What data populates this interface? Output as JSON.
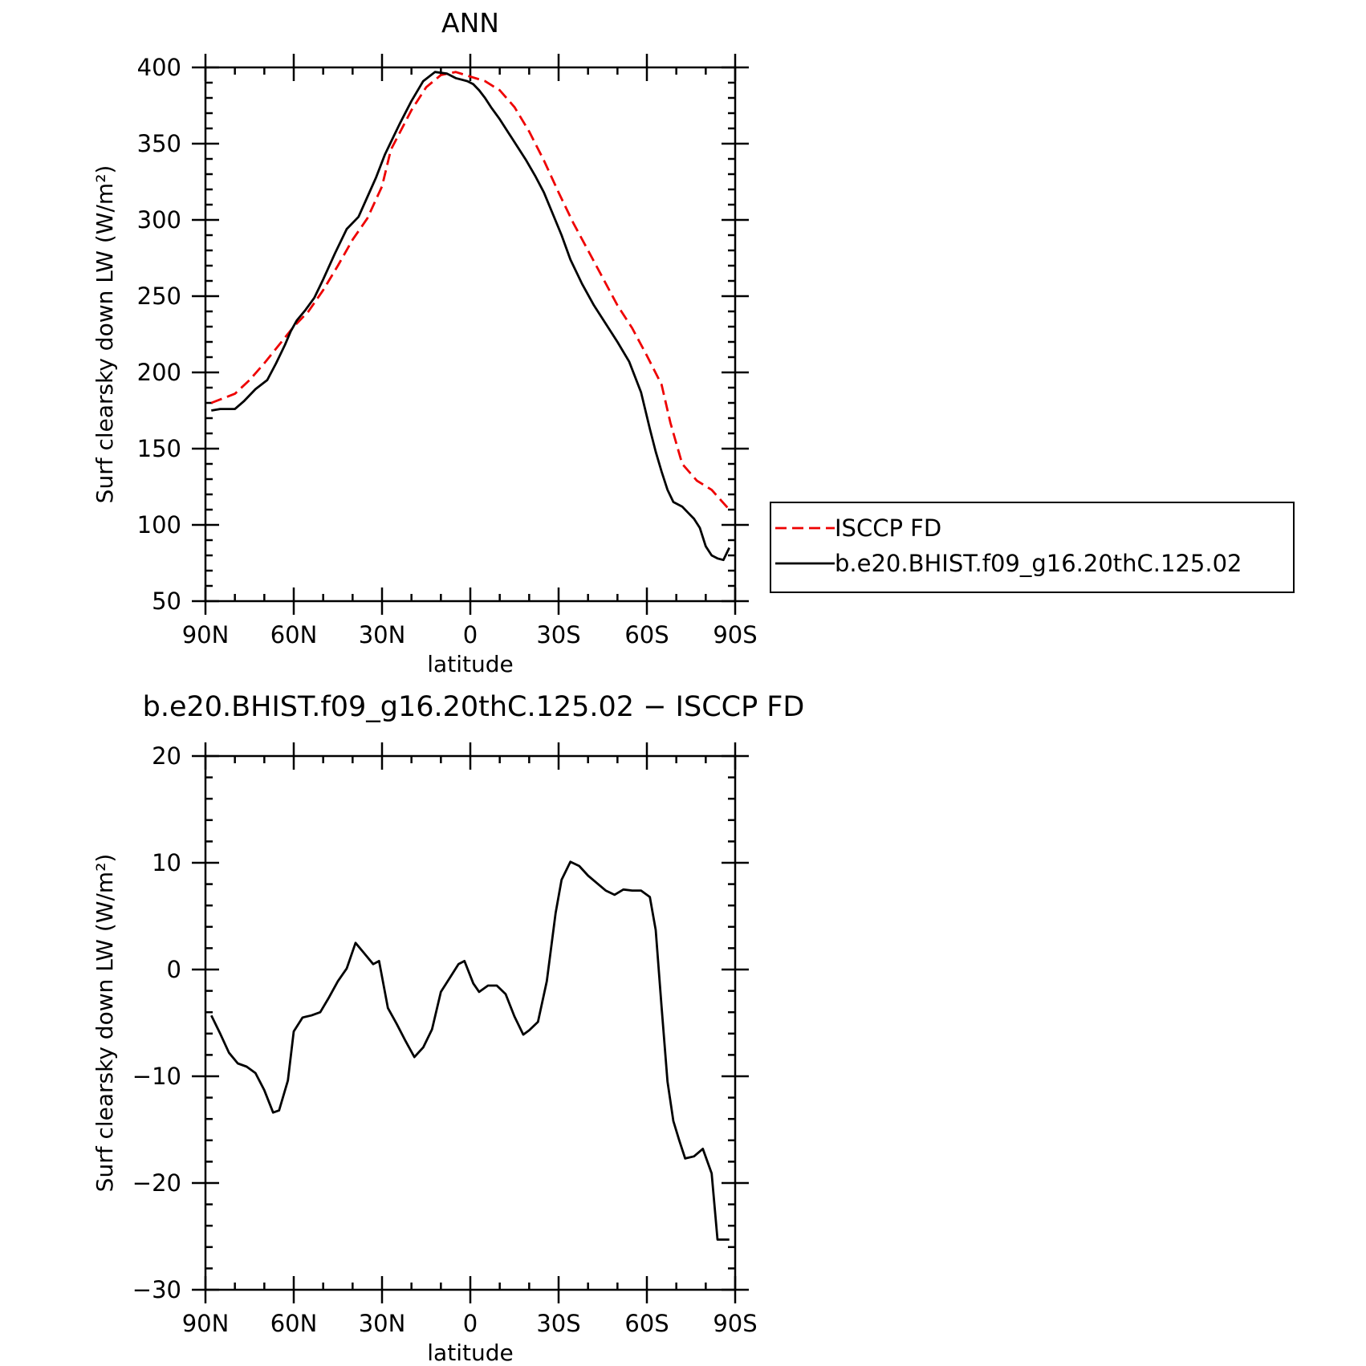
{
  "chart_data": [
    {
      "type": "line",
      "title": "ANN",
      "xlabel": "latitude",
      "ylabel": "Surf clearsky down LW (W/m²)",
      "xlim": [
        90,
        -90
      ],
      "ylim": [
        50,
        400
      ],
      "x_ticks": [
        {
          "value": 90,
          "label": "90N"
        },
        {
          "value": 60,
          "label": "60N"
        },
        {
          "value": 30,
          "label": "30N"
        },
        {
          "value": 0,
          "label": "0"
        },
        {
          "value": -30,
          "label": "30S"
        },
        {
          "value": -60,
          "label": "60S"
        },
        {
          "value": -90,
          "label": "90S"
        }
      ],
      "y_ticks": [
        400,
        350,
        300,
        250,
        200,
        150,
        100,
        50
      ],
      "legend": "right",
      "series": [
        {
          "name": "ISCCP FD",
          "color": "#ee0000",
          "style": "dashed",
          "x": [
            88,
            80,
            75,
            70,
            65,
            60,
            55,
            50,
            45,
            40,
            35,
            30,
            27,
            20,
            15,
            10,
            5,
            0,
            -5,
            -10,
            -15,
            -20,
            -25,
            -30,
            -35,
            -40,
            -45,
            -50,
            -55,
            -60,
            -65,
            -68,
            -72,
            -77,
            -82,
            -88
          ],
          "y": [
            180,
            186,
            195,
            206,
            218,
            230,
            240,
            254,
            270,
            287,
            301,
            322,
            346,
            372,
            387,
            395,
            397,
            394,
            391,
            385,
            374,
            358,
            339,
            318,
            298,
            280,
            262,
            244,
            229,
            211,
            192,
            167,
            140,
            129,
            123,
            110
          ]
        },
        {
          "name": "b.e20.BHIST.f09_g16.20thC.125.02",
          "color": "#000000",
          "style": "solid",
          "x": [
            88,
            85,
            80,
            77,
            73,
            69,
            66,
            63,
            61,
            59,
            56,
            53,
            50,
            46,
            42,
            38,
            35,
            32,
            29,
            27,
            24,
            20,
            16,
            12,
            8,
            5,
            3,
            1,
            -1,
            -3,
            -5,
            -7,
            -10,
            -13,
            -16,
            -19,
            -22,
            -25,
            -28,
            -31,
            -34,
            -38,
            -42,
            -46,
            -50,
            -54,
            -58,
            -61,
            -63,
            -65,
            -67,
            -69,
            -72,
            -74,
            -76,
            -78,
            -80,
            -82,
            -84,
            -86,
            -88
          ],
          "y": [
            175,
            176,
            176,
            181,
            189,
            195,
            206,
            218,
            227,
            234,
            241,
            249,
            261,
            278,
            294,
            302,
            315,
            328,
            343,
            351,
            363,
            378,
            391,
            397,
            396,
            393,
            392,
            391,
            389,
            385,
            380,
            374,
            366,
            357,
            348,
            339,
            329,
            318,
            304,
            290,
            274,
            258,
            244,
            232,
            220,
            207,
            187,
            163,
            148,
            135,
            123,
            115,
            112,
            108,
            104,
            98,
            86,
            80,
            78,
            77,
            85
          ]
        }
      ]
    },
    {
      "type": "line",
      "title": "b.e20.BHIST.f09_g16.20thC.125.02 − ISCCP FD",
      "xlabel": "latitude",
      "ylabel": "Surf clearsky down LW (W/m²)",
      "xlim": [
        90,
        -90
      ],
      "ylim": [
        -30,
        20
      ],
      "x_ticks": [
        {
          "value": 90,
          "label": "90N"
        },
        {
          "value": 60,
          "label": "60N"
        },
        {
          "value": 30,
          "label": "30N"
        },
        {
          "value": 0,
          "label": "0"
        },
        {
          "value": -30,
          "label": "30S"
        },
        {
          "value": -60,
          "label": "60S"
        },
        {
          "value": -90,
          "label": "90S"
        }
      ],
      "y_ticks": [
        {
          "value": 20,
          "label": "20"
        },
        {
          "value": 10,
          "label": "10"
        },
        {
          "value": 0,
          "label": "0"
        },
        {
          "value": -10,
          "label": "−10"
        },
        {
          "value": -20,
          "label": "−20"
        },
        {
          "value": -30,
          "label": "−30"
        }
      ],
      "series": [
        {
          "color": "#000000",
          "style": "solid",
          "x": [
            88,
            85,
            82,
            79,
            76,
            73,
            70,
            67,
            65,
            62,
            60,
            57,
            54,
            51,
            48,
            45,
            42,
            39,
            36,
            33,
            31,
            28,
            25,
            22,
            19,
            16,
            13,
            10,
            7,
            4,
            2,
            -1,
            -3,
            -6,
            -9,
            -12,
            -15,
            -18,
            -20,
            -23,
            -26,
            -29,
            -31,
            -34,
            -37,
            -40,
            -43,
            -46,
            -49,
            -52,
            -55,
            -58,
            -61,
            -63,
            -65,
            -67,
            -69,
            -71,
            -73,
            -76,
            -79,
            -82,
            -84,
            -86,
            -88
          ],
          "y": [
            -4.3,
            -6.0,
            -7.8,
            -8.8,
            -9.1,
            -9.7,
            -11.3,
            -13.4,
            -13.2,
            -10.4,
            -5.8,
            -4.5,
            -4.3,
            -4.0,
            -2.6,
            -1.1,
            0.1,
            2.5,
            1.5,
            0.5,
            0.8,
            -3.6,
            -5.1,
            -6.7,
            -8.2,
            -7.3,
            -5.6,
            -2.1,
            -0.8,
            0.5,
            0.8,
            -1.3,
            -2.1,
            -1.5,
            -1.5,
            -2.3,
            -4.4,
            -6.1,
            -5.7,
            -4.9,
            -1.1,
            5.3,
            8.4,
            10.1,
            9.7,
            8.8,
            8.1,
            7.4,
            7.0,
            7.5,
            7.4,
            7.4,
            6.8,
            3.7,
            -3.5,
            -10.5,
            -14.2,
            -16.0,
            -17.7,
            -17.5,
            -16.8,
            -19.1,
            -25.3,
            -25.3,
            -25.3
          ]
        }
      ]
    }
  ]
}
